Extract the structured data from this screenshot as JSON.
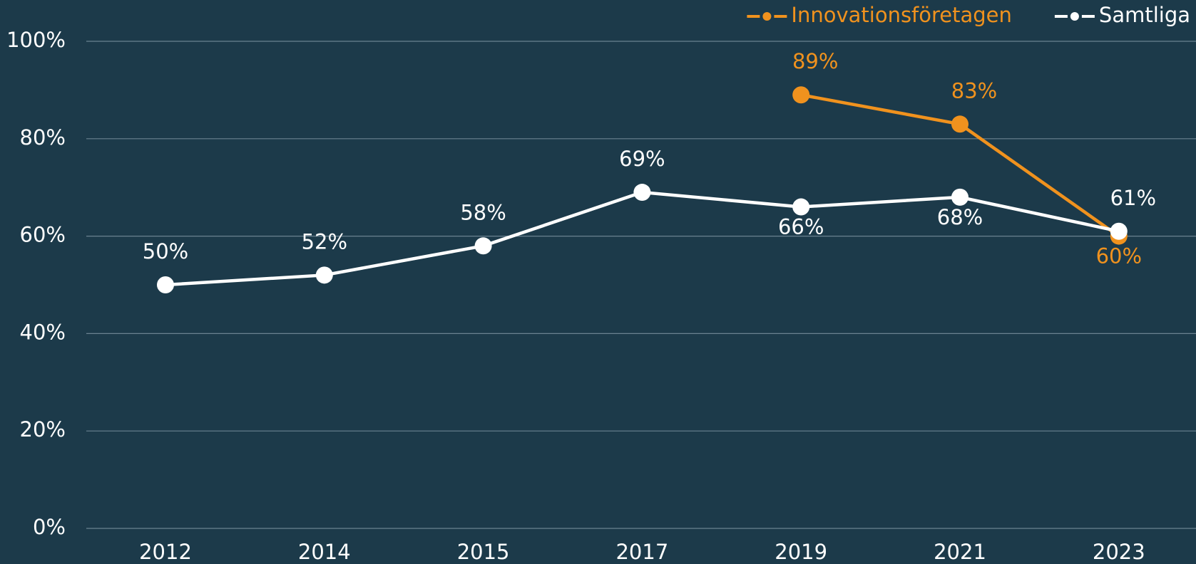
{
  "chart_data": {
    "type": "line",
    "categories": [
      "2012",
      "2014",
      "2015",
      "2017",
      "2019",
      "2021",
      "2023"
    ],
    "series": [
      {
        "name": "Innovationsföretagen",
        "color": "#f0921e",
        "values": [
          null,
          null,
          null,
          null,
          89,
          83,
          60
        ],
        "value_labels": [
          null,
          null,
          null,
          null,
          "89%",
          "83%",
          "60%"
        ]
      },
      {
        "name": "Samtliga",
        "color": "#ffffff",
        "values": [
          50,
          52,
          58,
          69,
          66,
          68,
          61
        ],
        "value_labels": [
          "50%",
          "52%",
          "58%",
          "69%",
          "66%",
          "68%",
          "61%"
        ]
      }
    ],
    "ylim": [
      0,
      100
    ],
    "yticks": [
      {
        "value": 0,
        "label": "0%"
      },
      {
        "value": 20,
        "label": "20%"
      },
      {
        "value": 40,
        "label": "40%"
      },
      {
        "value": 60,
        "label": "60%"
      },
      {
        "value": 80,
        "label": "80%"
      },
      {
        "value": 100,
        "label": "100%"
      }
    ],
    "grid": true,
    "legend": "top-right"
  }
}
